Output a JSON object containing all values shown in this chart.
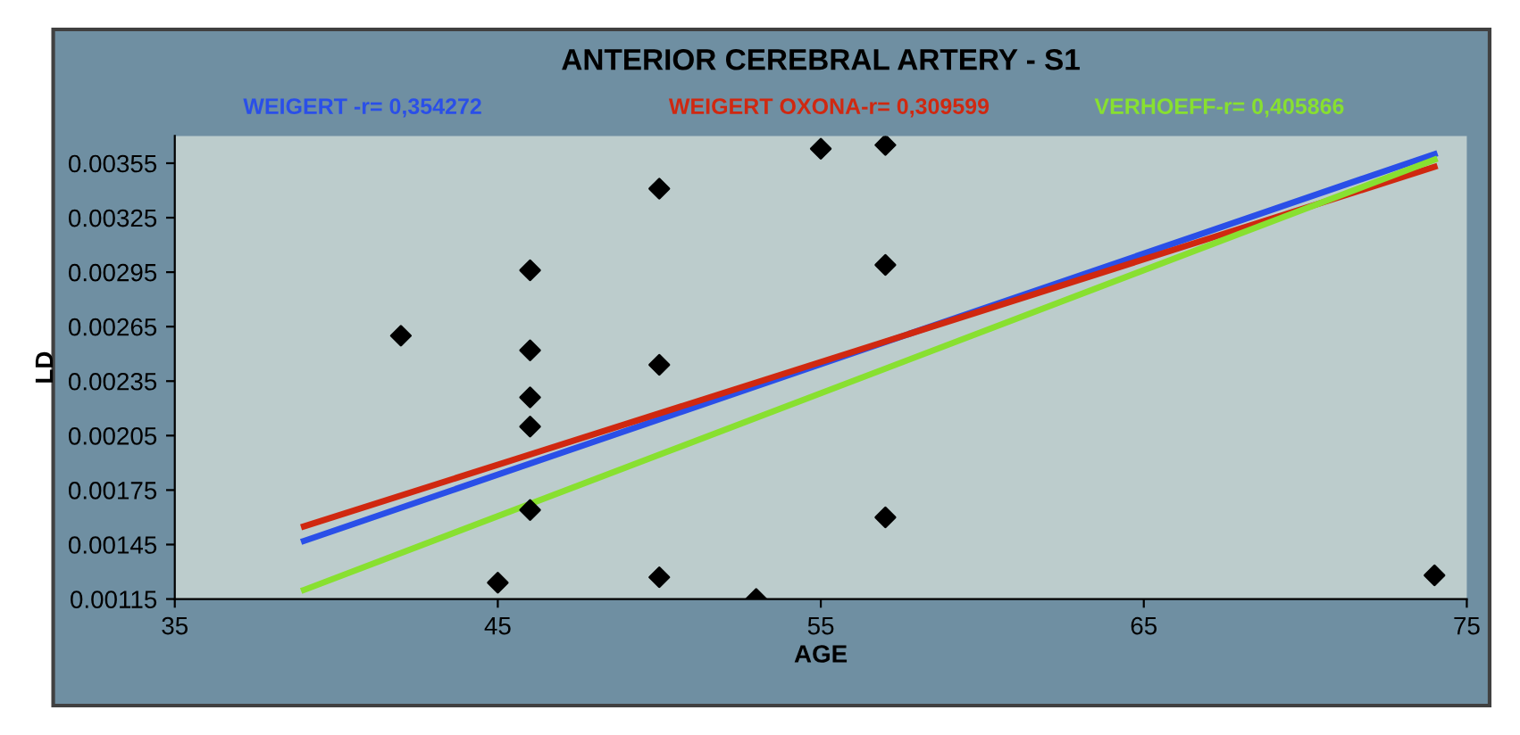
{
  "chart_data": {
    "type": "scatter",
    "title": "ANTERIOR CEREBRAL ARTERY - S1",
    "xlabel": "AGE",
    "ylabel": "LD",
    "xlim": [
      35,
      75
    ],
    "xticks": [
      35,
      45,
      55,
      65,
      75
    ],
    "ylim": [
      0.00115,
      0.0037
    ],
    "yticks": [
      0.00115,
      0.00145,
      0.00175,
      0.00205,
      0.00235,
      0.00265,
      0.00295,
      0.00325,
      0.00355
    ],
    "grid": false,
    "legend": "top",
    "series": [
      {
        "marker": "diamond",
        "color": "#000000",
        "x": [
          42,
          46,
          46,
          46,
          46,
          46,
          45,
          50,
          50,
          50,
          53,
          55,
          57,
          57,
          57,
          74
        ],
        "values": [
          0.0026,
          0.00296,
          0.00252,
          0.00226,
          0.0021,
          0.00164,
          0.00124,
          0.00341,
          0.00244,
          0.00127,
          0.00115,
          0.00363,
          0.00365,
          0.00299,
          0.0016,
          0.00128
        ]
      },
      {
        "type": "line",
        "name": "WEIGERT -r= 0,354272",
        "color": "#2a4fe8",
        "x": [
          39,
          74
        ],
        "values": [
          0.00147,
          0.0036
        ]
      },
      {
        "type": "line",
        "name": "WEIGERT OXONA-r= 0,309599",
        "color": "#d02810",
        "x": [
          39,
          74
        ],
        "values": [
          0.00155,
          0.00353
        ]
      },
      {
        "type": "line",
        "name": "VERHOEFF-r= 0,405866",
        "color": "#88e030",
        "x": [
          39,
          74
        ],
        "values": [
          0.0012,
          0.00357
        ]
      }
    ]
  }
}
